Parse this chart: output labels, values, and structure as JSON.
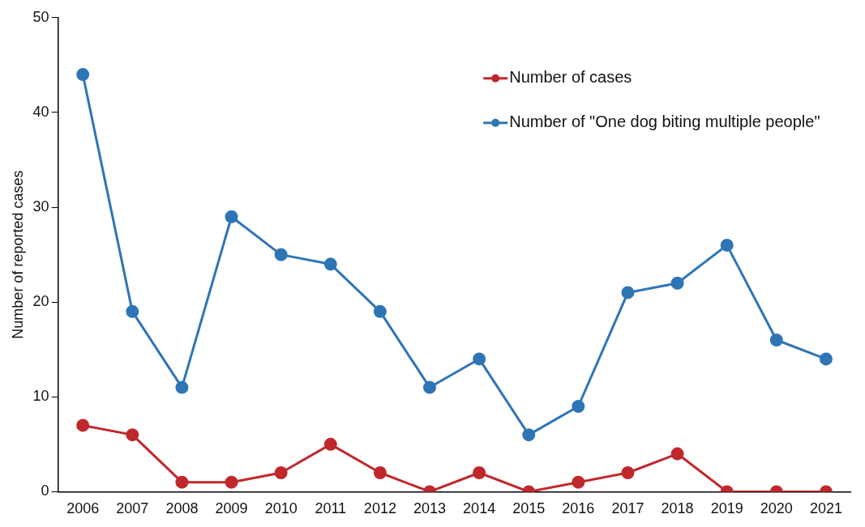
{
  "chart_data": {
    "type": "line",
    "ylabel": "Number of reported cases",
    "categories": [
      "2006",
      "2007",
      "2008",
      "2009",
      "2010",
      "2011",
      "2012",
      "2013",
      "2014",
      "2015",
      "2016",
      "2017",
      "2018",
      "2019",
      "2020",
      "2021"
    ],
    "series": [
      {
        "name": "Number of cases",
        "color": "#c0282d",
        "values": [
          7,
          6,
          1,
          1,
          2,
          5,
          2,
          0,
          2,
          0,
          1,
          2,
          4,
          0,
          0,
          0
        ]
      },
      {
        "name": "Number of \"One dog biting multiple people\"",
        "color": "#2e75b6",
        "values": [
          44,
          19,
          11,
          29,
          25,
          24,
          19,
          11,
          14,
          6,
          9,
          21,
          22,
          26,
          16,
          14
        ]
      }
    ],
    "ylim": [
      0,
      50
    ],
    "yticks": [
      0,
      10,
      20,
      30,
      40,
      50
    ],
    "grid": false,
    "legend": "top right",
    "marker": "circle",
    "line_style": "solid"
  }
}
